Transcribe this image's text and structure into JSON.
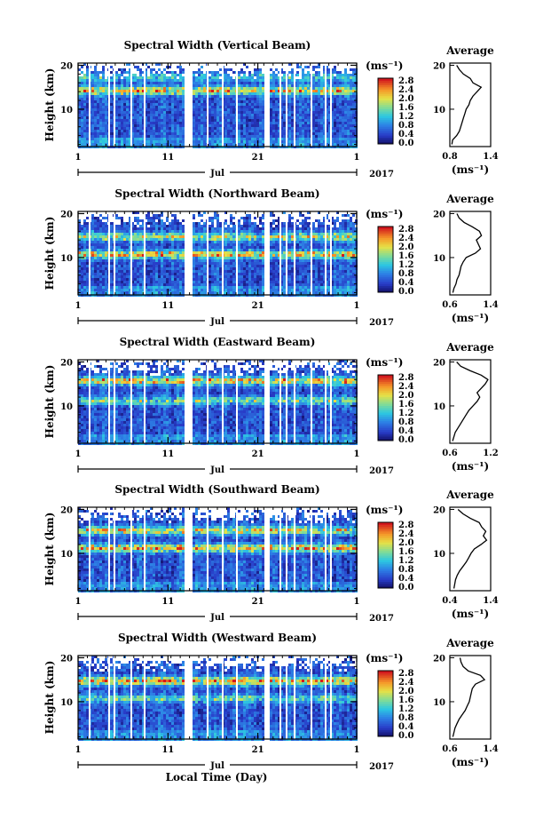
{
  "common": {
    "month_label": "Jul",
    "year_label": "2017",
    "height_label": "Height (km)",
    "unit_label": "(ms⁻¹)",
    "average_title": "Average",
    "x_axis_label": "Local Time (Day)",
    "time_ticks": [
      "1",
      "11",
      "21",
      "1"
    ],
    "height_ticks": [
      "20",
      "10"
    ],
    "colorbar_ticks": [
      "2.8",
      "2.4",
      "2.0",
      "1.6",
      "1.2",
      "0.8",
      "0.4",
      "0.0"
    ],
    "colors": {
      "low": "#1c2f8f",
      "mid_low": "#2f7fd8",
      "mid": "#31c4d9",
      "mid_high": "#b9e070",
      "high": "#f2a431",
      "max": "#d7191c"
    }
  },
  "chart_data": [
    {
      "type": "heatmap",
      "title": "Spectral Width (Vertical Beam)",
      "x": [
        "1",
        "11",
        "21",
        "1"
      ],
      "xlabel": "",
      "ylabel": "Height (km)",
      "ylim": [
        1.5,
        20.5
      ],
      "zlim": [
        0.0,
        3.0
      ],
      "colorbar_label": "(ms⁻¹)",
      "average_profile": {
        "title": "Average",
        "xlim": [
          0.8,
          1.4
        ],
        "x_ticks": [
          "0.8",
          "1.4"
        ],
        "xlabel": "(ms⁻¹)",
        "height_km": [
          2,
          3,
          4,
          5,
          6,
          7,
          8,
          9,
          10,
          11,
          12,
          13,
          14,
          15,
          16,
          17,
          18,
          19,
          20
        ],
        "values": [
          0.83,
          0.84,
          0.9,
          0.94,
          0.96,
          0.98,
          1.0,
          1.02,
          1.04,
          1.08,
          1.1,
          1.14,
          1.2,
          1.26,
          1.14,
          1.1,
          1.0,
          0.94,
          0.9
        ]
      }
    },
    {
      "type": "heatmap",
      "title": "Spectral Width (Northward Beam)",
      "x": [
        "1",
        "11",
        "21",
        "1"
      ],
      "xlabel": "",
      "ylabel": "Height (km)",
      "ylim": [
        1.5,
        20.5
      ],
      "zlim": [
        0.0,
        3.0
      ],
      "colorbar_label": "(ms⁻¹)",
      "average_profile": {
        "title": "Average",
        "xlim": [
          0.6,
          1.4
        ],
        "x_ticks": [
          "0.6",
          "1.4"
        ],
        "xlabel": "(ms⁻¹)",
        "height_km": [
          2,
          3,
          4,
          5,
          6,
          7,
          8,
          9,
          10,
          11,
          12,
          13,
          14,
          15,
          16,
          17,
          18,
          19,
          20
        ],
        "values": [
          0.66,
          0.68,
          0.72,
          0.74,
          0.78,
          0.8,
          0.82,
          0.86,
          0.92,
          1.1,
          1.2,
          1.16,
          1.12,
          1.22,
          1.18,
          1.04,
          0.88,
          0.78,
          0.74
        ]
      }
    },
    {
      "type": "heatmap",
      "title": "Spectral Width (Eastward Beam)",
      "x": [
        "1",
        "11",
        "21",
        "1"
      ],
      "xlabel": "",
      "ylabel": "Height (km)",
      "ylim": [
        1.5,
        20.5
      ],
      "zlim": [
        0.0,
        3.0
      ],
      "colorbar_label": "(ms⁻¹)",
      "average_profile": {
        "title": "Average",
        "xlim": [
          0.6,
          1.2
        ],
        "x_ticks": [
          "0.6",
          "1.2"
        ],
        "xlabel": "(ms⁻¹)",
        "height_km": [
          2,
          3,
          4,
          5,
          6,
          7,
          8,
          9,
          10,
          11,
          12,
          13,
          14,
          15,
          16,
          17,
          18,
          19,
          20
        ],
        "values": [
          0.64,
          0.66,
          0.68,
          0.72,
          0.76,
          0.8,
          0.84,
          0.88,
          0.94,
          1.0,
          1.04,
          1.0,
          1.06,
          1.12,
          1.16,
          1.06,
          0.9,
          0.76,
          0.7
        ]
      }
    },
    {
      "type": "heatmap",
      "title": "Spectral Width (Southward Beam)",
      "x": [
        "1",
        "11",
        "21",
        "1"
      ],
      "xlabel": "",
      "ylabel": "Height (km)",
      "ylim": [
        1.5,
        20.5
      ],
      "zlim": [
        0.0,
        3.0
      ],
      "colorbar_label": "(ms⁻¹)",
      "average_profile": {
        "title": "Average",
        "xlim": [
          0.4,
          1.4
        ],
        "x_ticks": [
          "0.4",
          "1.4"
        ],
        "xlabel": "(ms⁻¹)",
        "height_km": [
          2,
          3,
          4,
          5,
          6,
          7,
          8,
          9,
          10,
          11,
          12,
          13,
          14,
          15,
          16,
          17,
          18,
          19,
          20
        ],
        "values": [
          0.5,
          0.52,
          0.54,
          0.58,
          0.64,
          0.72,
          0.8,
          0.86,
          0.92,
          1.0,
          1.16,
          1.3,
          1.22,
          1.28,
          1.18,
          1.12,
          0.9,
          0.72,
          0.6
        ]
      }
    },
    {
      "type": "heatmap",
      "title": "Spectral Width (Westward Beam)",
      "x": [
        "1",
        "11",
        "21",
        "1"
      ],
      "xlabel": "Local Time (Day)",
      "ylabel": "Height (km)",
      "ylim": [
        1.5,
        20.5
      ],
      "zlim": [
        0.0,
        3.0
      ],
      "colorbar_label": "(ms⁻¹)",
      "average_profile": {
        "title": "Average",
        "xlim": [
          0.6,
          1.4
        ],
        "x_ticks": [
          "0.6",
          "1.4"
        ],
        "xlabel": "(ms⁻¹)",
        "height_km": [
          2,
          3,
          4,
          5,
          6,
          7,
          8,
          9,
          10,
          11,
          12,
          13,
          14,
          15,
          16,
          17,
          18,
          19,
          20
        ],
        "values": [
          0.66,
          0.68,
          0.7,
          0.74,
          0.78,
          0.84,
          0.9,
          0.94,
          0.98,
          1.0,
          1.02,
          1.04,
          1.1,
          1.28,
          1.2,
          0.96,
          0.86,
          0.82,
          0.8
        ]
      }
    }
  ]
}
